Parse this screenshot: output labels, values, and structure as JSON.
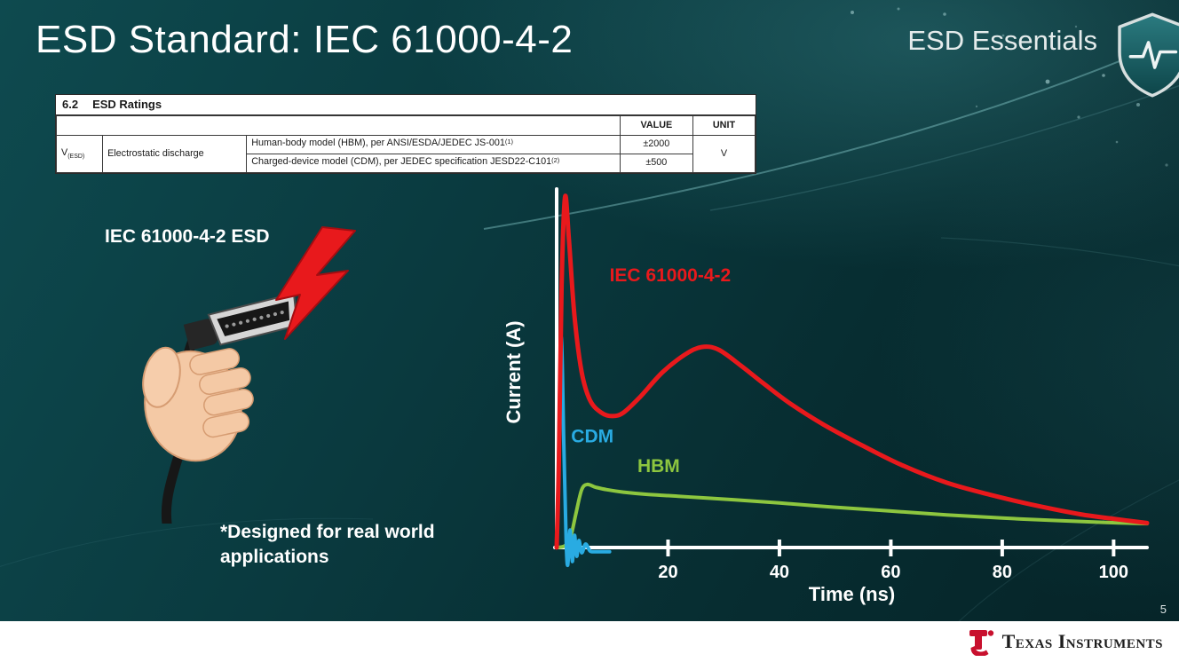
{
  "slide": {
    "title": "ESD Standard: IEC 61000-4-2",
    "brand": "ESD Essentials",
    "page_number": "5",
    "footer_brand": "Texas Instruments"
  },
  "ratings_table": {
    "section_no": "6.2",
    "section_title": "ESD Ratings",
    "col_value": "VALUE",
    "col_unit": "UNIT",
    "symbol": "V",
    "symbol_sub": "(ESD)",
    "param_name": "Electrostatic discharge",
    "rows": [
      {
        "desc": "Human-body model (HBM), per ANSI/ESDA/JEDEC JS-001",
        "sup": "(1)",
        "value": "±2000"
      },
      {
        "desc": "Charged-device model (CDM), per JEDEC specification JESD22-C101",
        "sup": "(2)",
        "value": "±500"
      }
    ],
    "unit": "V"
  },
  "illustration": {
    "caption": "IEC 61000-4-2 ESD",
    "note": "*Designed for real world applications"
  },
  "chart_data": {
    "type": "line",
    "title": "",
    "xlabel": "Time (ns)",
    "ylabel": "Current (A)",
    "xlim": [
      0,
      106
    ],
    "ylim": [
      0,
      1
    ],
    "x_ticks": [
      20,
      40,
      60,
      80,
      100
    ],
    "grid": false,
    "y_axis_numeric_labels": false,
    "series": [
      {
        "name": "IEC 61000-4-2",
        "color": "#e8191c",
        "label_at": [
          9.5,
          0.76
        ],
        "points": [
          [
            0,
            0
          ],
          [
            0.4,
            0.25
          ],
          [
            0.9,
            0.75
          ],
          [
            1.5,
            1.0
          ],
          [
            2.2,
            0.88
          ],
          [
            3.2,
            0.66
          ],
          [
            4.5,
            0.5
          ],
          [
            6,
            0.42
          ],
          [
            8,
            0.385
          ],
          [
            10,
            0.375
          ],
          [
            12,
            0.385
          ],
          [
            15,
            0.43
          ],
          [
            19,
            0.5
          ],
          [
            23,
            0.55
          ],
          [
            26,
            0.572
          ],
          [
            29,
            0.565
          ],
          [
            33,
            0.52
          ],
          [
            37,
            0.47
          ],
          [
            42,
            0.41
          ],
          [
            48,
            0.35
          ],
          [
            55,
            0.29
          ],
          [
            62,
            0.235
          ],
          [
            70,
            0.185
          ],
          [
            78,
            0.15
          ],
          [
            86,
            0.12
          ],
          [
            94,
            0.095
          ],
          [
            100,
            0.082
          ],
          [
            106,
            0.07
          ]
        ]
      },
      {
        "name": "CDM",
        "color": "#29abe2",
        "label_at": [
          2.6,
          0.3
        ],
        "points": [
          [
            0,
            0
          ],
          [
            0.3,
            0.2
          ],
          [
            0.8,
            0.6
          ],
          [
            1.3,
            0.28
          ],
          [
            1.7,
            0.02
          ],
          [
            2.0,
            -0.05
          ],
          [
            2.4,
            0.05
          ],
          [
            2.8,
            -0.04
          ],
          [
            3.2,
            0.035
          ],
          [
            3.6,
            -0.025
          ],
          [
            4.0,
            0.02
          ],
          [
            4.5,
            -0.015
          ],
          [
            5.2,
            0.01
          ],
          [
            6.0,
            -0.01
          ],
          [
            7.0,
            -0.012
          ],
          [
            8.5,
            -0.012
          ],
          [
            9.5,
            -0.012
          ]
        ]
      },
      {
        "name": "HBM",
        "color": "#8dc63f",
        "label_at": [
          14.5,
          0.215
        ],
        "points": [
          [
            0,
            0
          ],
          [
            1.5,
            0.005
          ],
          [
            2.5,
            0.03
          ],
          [
            3.5,
            0.1
          ],
          [
            4.5,
            0.165
          ],
          [
            5.5,
            0.18
          ],
          [
            7,
            0.172
          ],
          [
            9,
            0.165
          ],
          [
            12,
            0.158
          ],
          [
            16,
            0.152
          ],
          [
            20,
            0.148
          ],
          [
            26,
            0.142
          ],
          [
            32,
            0.136
          ],
          [
            40,
            0.127
          ],
          [
            50,
            0.115
          ],
          [
            60,
            0.104
          ],
          [
            70,
            0.093
          ],
          [
            80,
            0.084
          ],
          [
            90,
            0.077
          ],
          [
            98,
            0.072
          ],
          [
            106,
            0.068
          ]
        ]
      }
    ]
  }
}
